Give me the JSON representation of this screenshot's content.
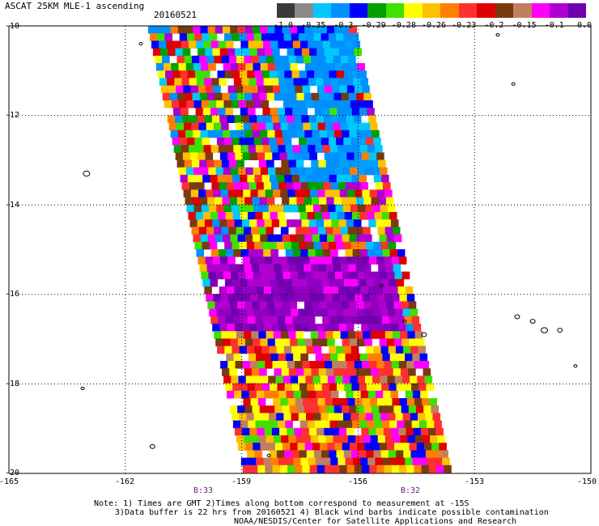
{
  "title": "ASCAT 25KM MLE-1 ascending",
  "date": "20160521",
  "colorbar": {
    "labels": [
      "-1.0",
      "-0.35",
      "-0.3",
      "-0.29",
      "-0.28",
      "-0.26",
      "-0.23",
      "-0.2",
      "-0.15",
      "-0.1",
      "0.0"
    ],
    "colors": [
      "#3a3a3a",
      "#8a8a8a",
      "#00c8ff",
      "#0090ff",
      "#0000ff",
      "#00a000",
      "#40e000",
      "#ffff00",
      "#ffc000",
      "#ff8000",
      "#ff3030",
      "#e00000",
      "#7a3a10",
      "#c08060",
      "#ff00ff",
      "#b000d0",
      "#7000b0"
    ]
  },
  "axes": {
    "y_ticks": [
      "-10",
      "-12",
      "-14",
      "-16",
      "-18",
      "-20"
    ],
    "x_ticks": [
      "-165",
      "-162",
      "-159",
      "-156",
      "-153",
      "-150"
    ],
    "lat_range": [
      -20,
      -10
    ],
    "lon_range": [
      -165,
      -150
    ]
  },
  "pass_times": [
    {
      "label": "B:33",
      "lon": -161
    },
    {
      "label": "B:32",
      "lon": -155.7
    }
  ],
  "notes": [
    "Note: 1) Times are GMT 2)Times along bottom correspond to measurement at -15S",
    "3)Data buffer is 22 hrs from 20160521 4) Black wind barbs indicate possible contamination",
    "NOAA/NESDIS/Center for Satellite Applications and Research"
  ]
}
